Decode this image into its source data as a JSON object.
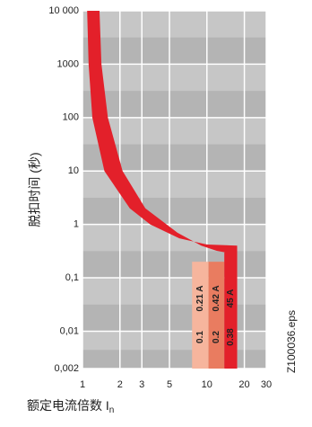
{
  "chart_data": {
    "type": "trip-curve",
    "ylabel": "脱扣时间 (秒)",
    "xlabel": "额定电流倍数 I",
    "xlabel_sub": "n",
    "note": "Z100036.eps",
    "log_x": true,
    "log_y": true,
    "grid": true,
    "xlim": [
      1,
      30
    ],
    "xticks": [
      1,
      2,
      3,
      5,
      10,
      20,
      30
    ],
    "ylim": [
      0.002,
      10000
    ],
    "yticks": [
      {
        "value": 10000,
        "label": "10 000"
      },
      1000,
      100,
      10,
      1,
      {
        "value": 0.1,
        "label": "0,1"
      },
      {
        "value": 0.01,
        "label": "0,01"
      },
      {
        "value": 0.002,
        "label": "0,002"
      }
    ],
    "curve": {
      "color": "#e3202a",
      "upper": {
        "x": [
          1.09,
          1.12,
          1.2,
          1.5,
          2.4,
          3.5,
          6,
          10,
          17.5,
          17.5
        ],
        "y": [
          10000,
          1000,
          100,
          10,
          2,
          1,
          0.55,
          0.42,
          0.4,
          0.002
        ]
      },
      "lower": {
        "x": [
          1.37,
          1.42,
          1.6,
          2.1,
          3.2,
          5.8,
          9,
          12,
          14,
          14
        ],
        "y": [
          10000,
          1000,
          100,
          10,
          2,
          0.7,
          0.4,
          0.32,
          0.3,
          0.002
        ]
      }
    },
    "columns": [
      {
        "x": [
          7.6,
          10.3
        ],
        "top": 0.2,
        "color": "#f6b59d",
        "labels": [
          "0.1",
          "0.21 A"
        ]
      },
      {
        "x": [
          10.3,
          13.8
        ],
        "top": 0.2,
        "color": "#e97c60",
        "labels": [
          "0.2",
          "0.42 A"
        ]
      },
      {
        "x": [
          13.8,
          17.5
        ],
        "top": 0.3,
        "color": "#e3202a",
        "labels": [
          "0.38",
          "45 A"
        ]
      }
    ]
  }
}
